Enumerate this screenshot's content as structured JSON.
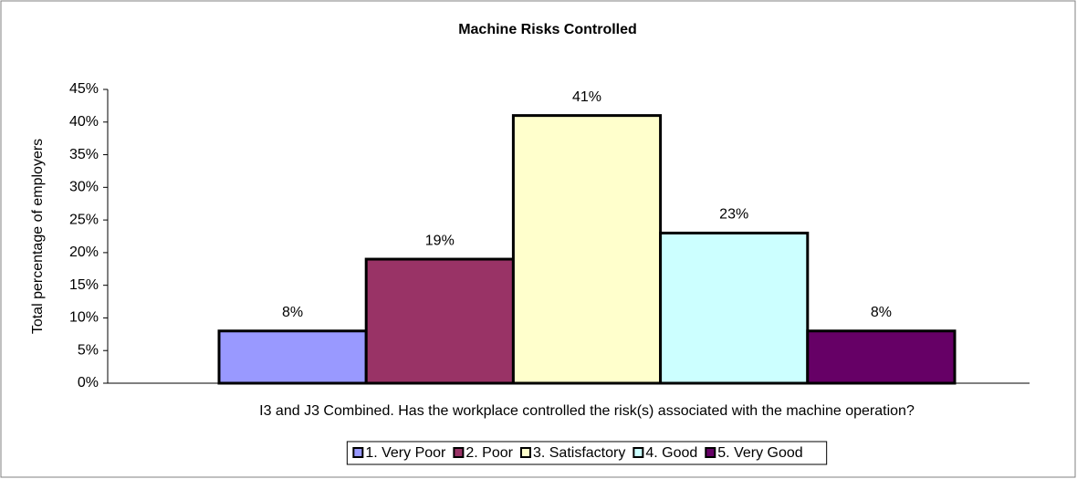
{
  "chart_data": {
    "type": "bar",
    "title": "Machine Risks Controlled",
    "ylabel": "Total percentage of employers",
    "xlabel": "I3 and J3 Combined. Has the workplace controlled the risk(s) associated with the machine operation?",
    "series": [
      {
        "name": "1. Very Poor",
        "color": "#9999ff",
        "values": [
          8
        ],
        "value_labels": [
          "8%"
        ]
      },
      {
        "name": "2. Poor",
        "color": "#993366",
        "values": [
          19
        ],
        "value_labels": [
          "19%"
        ]
      },
      {
        "name": "3. Satisfactory",
        "color": "#ffffcc",
        "values": [
          41
        ],
        "value_labels": [
          "41%"
        ]
      },
      {
        "name": "4. Good",
        "color": "#ccffff",
        "values": [
          23
        ],
        "value_labels": [
          "23%"
        ]
      },
      {
        "name": "5. Very Good",
        "color": "#660066",
        "values": [
          8
        ],
        "value_labels": [
          "8%"
        ]
      }
    ],
    "ylim": [
      0,
      45
    ],
    "yticks": [
      {
        "value": 0,
        "label": "0%"
      },
      {
        "value": 5,
        "label": "5%"
      },
      {
        "value": 10,
        "label": "10%"
      },
      {
        "value": 15,
        "label": "15%"
      },
      {
        "value": 20,
        "label": "20%"
      },
      {
        "value": 25,
        "label": "25%"
      },
      {
        "value": 30,
        "label": "30%"
      },
      {
        "value": 35,
        "label": "35%"
      },
      {
        "value": 40,
        "label": "40%"
      },
      {
        "value": 45,
        "label": "45%"
      }
    ],
    "grid": false,
    "legend": "bottom"
  }
}
